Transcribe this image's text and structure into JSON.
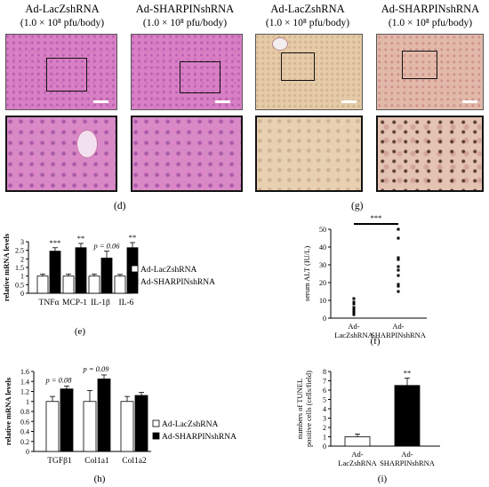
{
  "headers": {
    "col1": "Ad-LacZshRNA",
    "col2": "Ad-SHARPINshRNA",
    "col3": "Ad-LacZshRNA",
    "col4": "Ad-SHARPINshRNA",
    "dose": "(1.0 × 10⁸ pfu/body)"
  },
  "panel_labels": {
    "d": "(d)",
    "e": "(e)",
    "f": "(f)",
    "g": "(g)",
    "h": "(h)",
    "i": "(i)"
  },
  "colors": {
    "he_stain": "#d97fc5",
    "tunel_stain": "#e6cba8",
    "bar_white": "#ffffff",
    "bar_black": "#000000"
  },
  "chart_data": [
    {
      "id": "e",
      "type": "bar",
      "categories": [
        "TNFα",
        "MCP-1",
        "IL-1β",
        "IL-6"
      ],
      "ylabel": "relative mRNA levels",
      "ylim": [
        0,
        3
      ],
      "yticks": [
        "0",
        "0.5",
        "1",
        "1.5",
        "2",
        "2.5",
        "3"
      ],
      "series": [
        {
          "name": "Ad-LacZshRNA",
          "color": "#ffffff",
          "values": [
            1.0,
            1.0,
            1.0,
            1.0
          ],
          "errors": [
            0.12,
            0.12,
            0.12,
            0.1
          ]
        },
        {
          "name": "Ad-SHARPINshRNA",
          "color": "#000000",
          "values": [
            2.45,
            2.65,
            2.05,
            2.65
          ],
          "errors": [
            0.2,
            0.25,
            0.4,
            0.3
          ]
        }
      ],
      "annotations": [
        "***",
        "**",
        "p = 0.06",
        "**"
      ]
    },
    {
      "id": "f",
      "type": "scatter",
      "categories": [
        "Ad-\nLacZshRNA",
        "Ad-\nSHARPINshRNA"
      ],
      "category_lines": [
        [
          "Ad-",
          "LacZshRNA"
        ],
        [
          "Ad-",
          "SHARPINshRNA"
        ]
      ],
      "ylabel": "serum ALT (IU/L)",
      "ylim": [
        0,
        50
      ],
      "yticks": [
        "0",
        "10",
        "20",
        "30",
        "40",
        "50"
      ],
      "series": [
        {
          "name": "Ad-LacZshRNA",
          "values": [
            2,
            3,
            4,
            5,
            6,
            8,
            9,
            11
          ]
        },
        {
          "name": "Ad-SHARPINshRNA",
          "values": [
            15,
            18,
            19,
            24,
            27,
            29,
            33,
            34,
            45,
            50
          ]
        }
      ],
      "significance": "***"
    },
    {
      "id": "h",
      "type": "bar",
      "categories": [
        "TGFβ1",
        "Col1a1",
        "Col1a2"
      ],
      "ylabel": "relative mRNA levels",
      "ylim": [
        0,
        1.6
      ],
      "yticks": [
        "0",
        "0.2",
        "0.4",
        "0.6",
        "0.8",
        "1",
        "1.2",
        "1.4",
        "1.6"
      ],
      "series": [
        {
          "name": "Ad-LacZshRNA",
          "color": "#ffffff",
          "values": [
            1.0,
            1.0,
            1.0
          ],
          "errors": [
            0.1,
            0.22,
            0.1
          ]
        },
        {
          "name": "Ad-SHARPINshRNA",
          "color": "#000000",
          "values": [
            1.25,
            1.45,
            1.12
          ],
          "errors": [
            0.06,
            0.08,
            0.06
          ]
        }
      ],
      "annotations": [
        "p = 0.08",
        "p = 0.09",
        ""
      ]
    },
    {
      "id": "i",
      "type": "bar",
      "categories": [
        "Ad-\nLacZshRNA",
        "Ad-\nSHARPINshRNA"
      ],
      "category_lines": [
        [
          "Ad-",
          "LacZshRNA"
        ],
        [
          "Ad-",
          "SHARPINshRNA"
        ]
      ],
      "ylabel_lines": [
        "numbers of TUNEL",
        "positive cells (cells/field)"
      ],
      "ylim": [
        0,
        8
      ],
      "yticks": [
        "0",
        "1",
        "2",
        "3",
        "4",
        "5",
        "6",
        "7",
        "8"
      ],
      "series": [
        {
          "name": "",
          "colors": [
            "#ffffff",
            "#000000"
          ],
          "values": [
            1.0,
            6.5
          ],
          "errors": [
            0.3,
            0.8
          ]
        }
      ],
      "annotations": [
        "",
        "**"
      ]
    }
  ]
}
